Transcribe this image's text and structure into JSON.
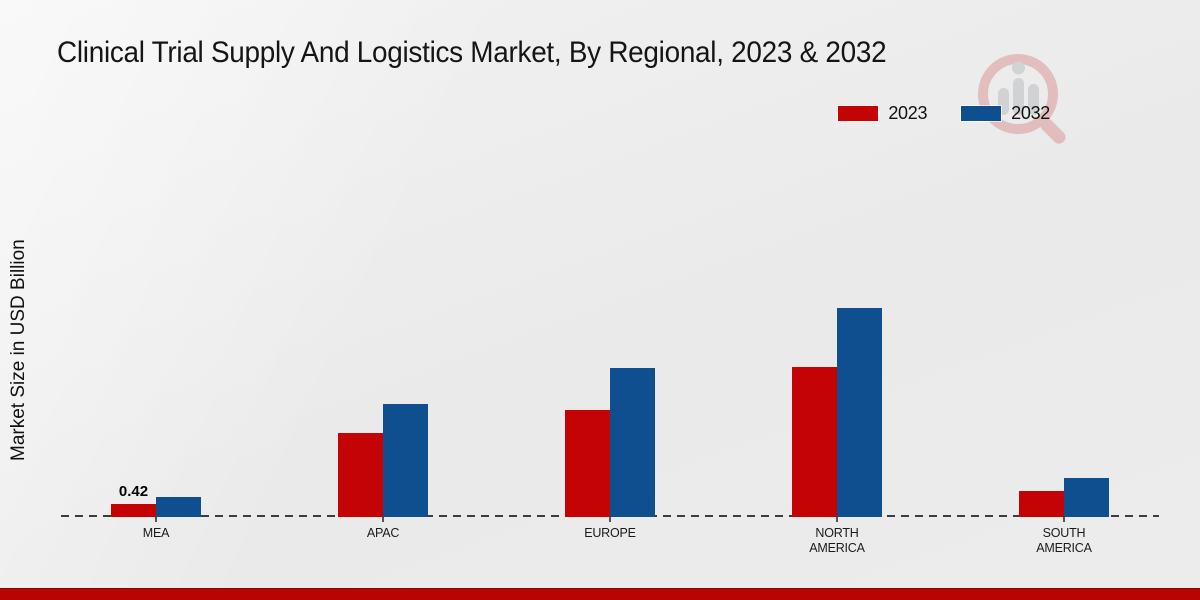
{
  "page": {
    "title": "Clinical Trial Supply And Logistics Market, By Regional, 2023 & 2032"
  },
  "y_axis": {
    "label": "Market Size in USD Billion"
  },
  "colors": {
    "series_2023": "#c40404",
    "series_2032": "#0f4f8f",
    "footer_bar": "#b90404",
    "baseline": "#3c3c3c"
  },
  "watermark": {
    "name": "market-research-future-logo"
  },
  "chart_data": {
    "type": "bar",
    "title": "Clinical Trial Supply And Logistics Market, By Regional, 2023 & 2032",
    "xlabel": "",
    "ylabel": "Market Size in USD Billion",
    "unit": "USD Billion",
    "categories": [
      "MEA",
      "APAC",
      "EUROPE",
      "NORTH AMERICA",
      "SOUTH AMERICA"
    ],
    "series": [
      {
        "name": "2023",
        "color": "#c40404",
        "values": [
          0.42,
          2.7,
          3.45,
          4.85,
          0.85
        ],
        "data_labels": [
          "0.42",
          null,
          null,
          null,
          null
        ]
      },
      {
        "name": "2032",
        "color": "#0f4f8f",
        "values": [
          0.65,
          3.65,
          4.8,
          6.75,
          1.25
        ],
        "data_labels": [
          null,
          null,
          null,
          null,
          null
        ]
      }
    ],
    "ylim": [
      0,
      7.5
    ],
    "y_axis_tick_labels_visible": false,
    "grid": false,
    "baseline_style": "dashed",
    "legend_position": "top-right"
  }
}
